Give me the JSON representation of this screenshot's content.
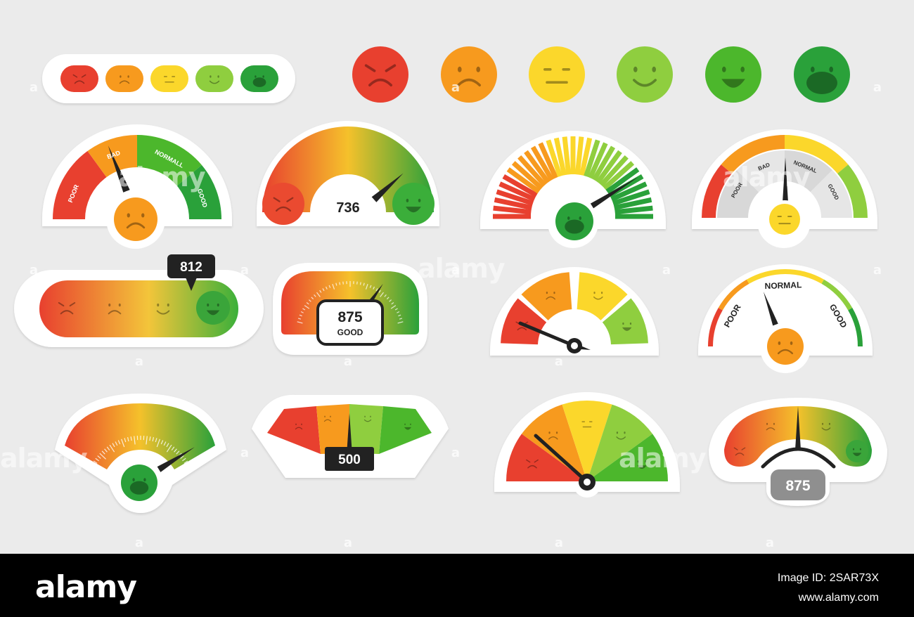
{
  "colors": {
    "red": "#e8402f",
    "orange": "#f79a1e",
    "yellow": "#fbd72b",
    "lightgreen": "#8fce3f",
    "green": "#4cb72c",
    "darkgreen": "#2aa13a",
    "background": "#ebebeb"
  },
  "emoji_scale": [
    "very-angry-face-icon",
    "sad-face-icon",
    "neutral-face-icon",
    "smiling-face-icon",
    "happy-face-icon",
    "very-happy-face-icon"
  ],
  "gauges": {
    "g1": {
      "labels": [
        "POOR",
        "BAD",
        "NORMALL",
        "GOOD"
      ]
    },
    "g2": {
      "value": "736"
    },
    "g4": {
      "labels": [
        "POOR",
        "BAD",
        "NORMAL",
        "GOOD"
      ]
    },
    "g5": {
      "value": "812"
    },
    "g6": {
      "value": "875",
      "rating": "GOOD"
    },
    "g8": {
      "labels": [
        "POOR",
        "NORMAL",
        "GOOD"
      ]
    },
    "g10": {
      "value": "500"
    },
    "g12": {
      "value": "875"
    }
  },
  "watermarks": [
    "alamy",
    "a"
  ],
  "footer": {
    "brand": "alamy",
    "image_id": "Image ID: 2SAR73X",
    "site": "www.alamy.com"
  }
}
